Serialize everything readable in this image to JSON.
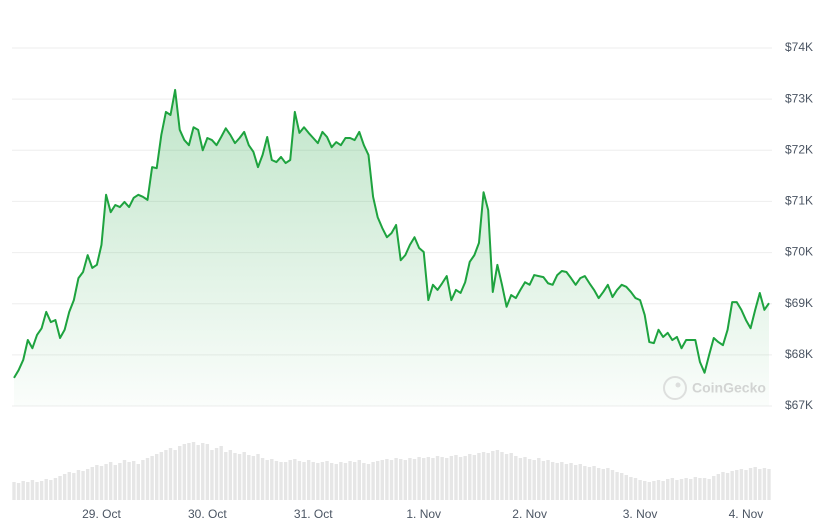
{
  "chart_data": {
    "type": "line",
    "color": "#1ea33f",
    "volume_color": "#e6e6e6",
    "watermark": "CoinGecko",
    "ylim": [
      67000,
      74000
    ],
    "yticks": [
      {
        "value": 67000,
        "label": "$67K"
      },
      {
        "value": 68000,
        "label": "$68K"
      },
      {
        "value": 69000,
        "label": "$69K"
      },
      {
        "value": 70000,
        "label": "$70K"
      },
      {
        "value": 71000,
        "label": "$71K"
      },
      {
        "value": 72000,
        "label": "$72K"
      },
      {
        "value": 73000,
        "label": "$73K"
      },
      {
        "value": 74000,
        "label": "$74K"
      }
    ],
    "grid": true,
    "categories": [
      null,
      null,
      null,
      null,
      null,
      null,
      null,
      null,
      null,
      null,
      null,
      null,
      null,
      null,
      null,
      null,
      null,
      null,
      null,
      "29. Oct",
      null,
      null,
      null,
      null,
      null,
      null,
      null,
      null,
      null,
      null,
      null,
      null,
      null,
      null,
      null,
      null,
      null,
      null,
      null,
      null,
      null,
      null,
      "30. Oct",
      null,
      null,
      null,
      null,
      null,
      null,
      null,
      null,
      null,
      null,
      null,
      null,
      null,
      null,
      null,
      null,
      null,
      null,
      null,
      null,
      null,
      null,
      "31. Oct",
      null,
      null,
      null,
      null,
      null,
      null,
      null,
      null,
      null,
      null,
      null,
      null,
      null,
      null,
      null,
      null,
      null,
      null,
      null,
      null,
      null,
      null,
      null,
      "1. Nov",
      null,
      null,
      null,
      null,
      null,
      null,
      null,
      null,
      null,
      null,
      null,
      null,
      null,
      null,
      null,
      null,
      null,
      null,
      null,
      null,
      null,
      null,
      "2. Nov",
      null,
      null,
      null,
      null,
      null,
      null,
      null,
      null,
      null,
      null,
      null,
      null,
      null,
      null,
      null,
      null,
      null,
      null,
      null,
      null,
      null,
      null,
      null,
      "3. Nov",
      null,
      null,
      null,
      null,
      null,
      null,
      null,
      null,
      null,
      null,
      null,
      null,
      null,
      null,
      null,
      null,
      null,
      null,
      null,
      null,
      null,
      null,
      "4. Nov",
      null,
      null,
      null,
      null,
      null
    ],
    "values": [
      67550,
      67700,
      67900,
      68290,
      68130,
      68390,
      68520,
      68840,
      68640,
      68680,
      68330,
      68490,
      68840,
      69070,
      69500,
      69620,
      69950,
      69700,
      69760,
      70150,
      71130,
      70790,
      70930,
      70890,
      70990,
      70890,
      71070,
      71130,
      71090,
      71030,
      71670,
      71650,
      72300,
      72750,
      72690,
      73180,
      72400,
      72200,
      72100,
      72450,
      72400,
      72000,
      72240,
      72200,
      72100,
      72260,
      72430,
      72300,
      72140,
      72240,
      72360,
      72100,
      71970,
      71670,
      71910,
      72260,
      71810,
      71770,
      71870,
      71750,
      71810,
      72750,
      72340,
      72450,
      72340,
      72240,
      72140,
      72360,
      72260,
      72060,
      72160,
      72100,
      72240,
      72240,
      72200,
      72360,
      72100,
      71910,
      71090,
      70690,
      70480,
      70300,
      70380,
      70540,
      69850,
      69950,
      70150,
      70300,
      70090,
      70010,
      69070,
      69370,
      69270,
      69400,
      69540,
      69070,
      69270,
      69210,
      69420,
      69820,
      69950,
      70190,
      71180,
      70830,
      69230,
      69760,
      69370,
      68940,
      69170,
      69110,
      69270,
      69420,
      69370,
      69560,
      69540,
      69520,
      69400,
      69370,
      69560,
      69640,
      69620,
      69500,
      69370,
      69500,
      69540,
      69400,
      69270,
      69110,
      69230,
      69370,
      69130,
      69270,
      69370,
      69330,
      69230,
      69110,
      69070,
      68780,
      68250,
      68230,
      68490,
      68350,
      68430,
      68290,
      68350,
      68130,
      68290,
      68290,
      68290,
      67860,
      67650,
      68000,
      68330,
      68250,
      68190,
      68490,
      69030,
      69030,
      68880,
      68680,
      68520,
      68880,
      69210,
      68880,
      69010
    ],
    "volumes": [
      18,
      17,
      19,
      18,
      20,
      18,
      19,
      21,
      20,
      22,
      24,
      26,
      28,
      27,
      30,
      29,
      31,
      33,
      35,
      34,
      36,
      38,
      35,
      37,
      40,
      38,
      39,
      36,
      40,
      42,
      44,
      46,
      48,
      50,
      52,
      50,
      54,
      56,
      57,
      58,
      55,
      57,
      56,
      50,
      52,
      54,
      48,
      50,
      47,
      46,
      48,
      45,
      44,
      46,
      42,
      40,
      41,
      39,
      38,
      38,
      40,
      41,
      39,
      38,
      40,
      38,
      37,
      38,
      39,
      37,
      36,
      38,
      37,
      39,
      38,
      40,
      37,
      36,
      38,
      39,
      40,
      41,
      40,
      42,
      41,
      40,
      42,
      41,
      43,
      42,
      43,
      42,
      44,
      43,
      42,
      44,
      45,
      43,
      44,
      46,
      45,
      47,
      48,
      47,
      49,
      50,
      48,
      46,
      47,
      44,
      42,
      43,
      41,
      40,
      42,
      39,
      40,
      38,
      37,
      38,
      36,
      37,
      35,
      36,
      34,
      33,
      34,
      32,
      31,
      32,
      30,
      28,
      27,
      25,
      23,
      22,
      20,
      19,
      18,
      19,
      20,
      19,
      21,
      22,
      20,
      21,
      22,
      21,
      23,
      22,
      22,
      21,
      24,
      26,
      28,
      27,
      29,
      30,
      31,
      30,
      32,
      33,
      31,
      32,
      31
    ]
  }
}
